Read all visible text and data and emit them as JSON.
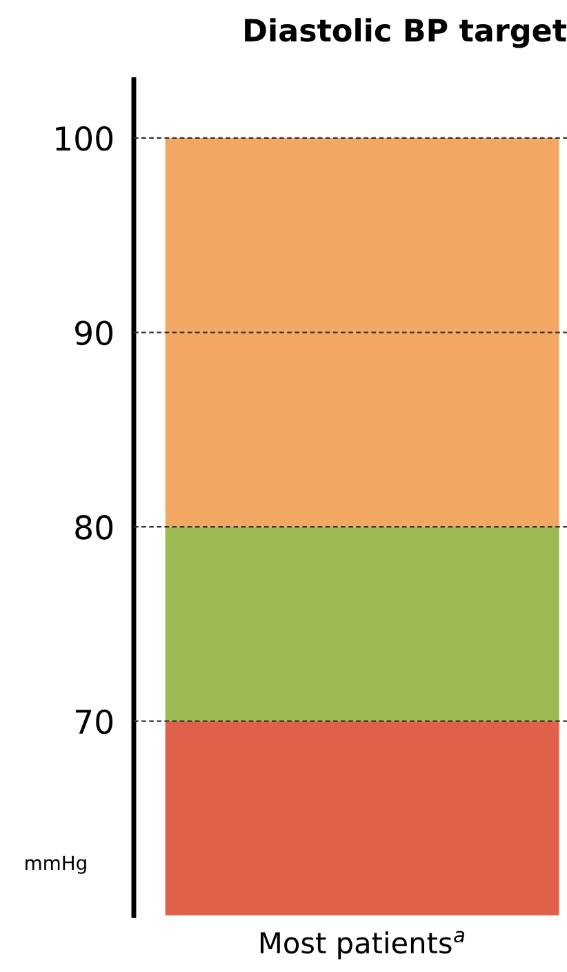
{
  "chart_data": {
    "type": "bar",
    "title": "Diastolic BP target",
    "ylabel": "mmHg",
    "categories": [
      "Most patients$^{a}$"
    ],
    "series": [
      {
        "color": "#e0604a",
        "values": [
          10
        ],
        "base": [
          60
        ]
      },
      {
        "color": "#9cba52",
        "values": [
          10
        ],
        "base": [
          70
        ]
      },
      {
        "color": "#f2a862",
        "values": [
          20
        ],
        "base": [
          80
        ]
      }
    ],
    "ylim": [
      60,
      103
    ],
    "yticks": [
      70,
      80,
      90,
      100
    ],
    "grid": "y"
  }
}
